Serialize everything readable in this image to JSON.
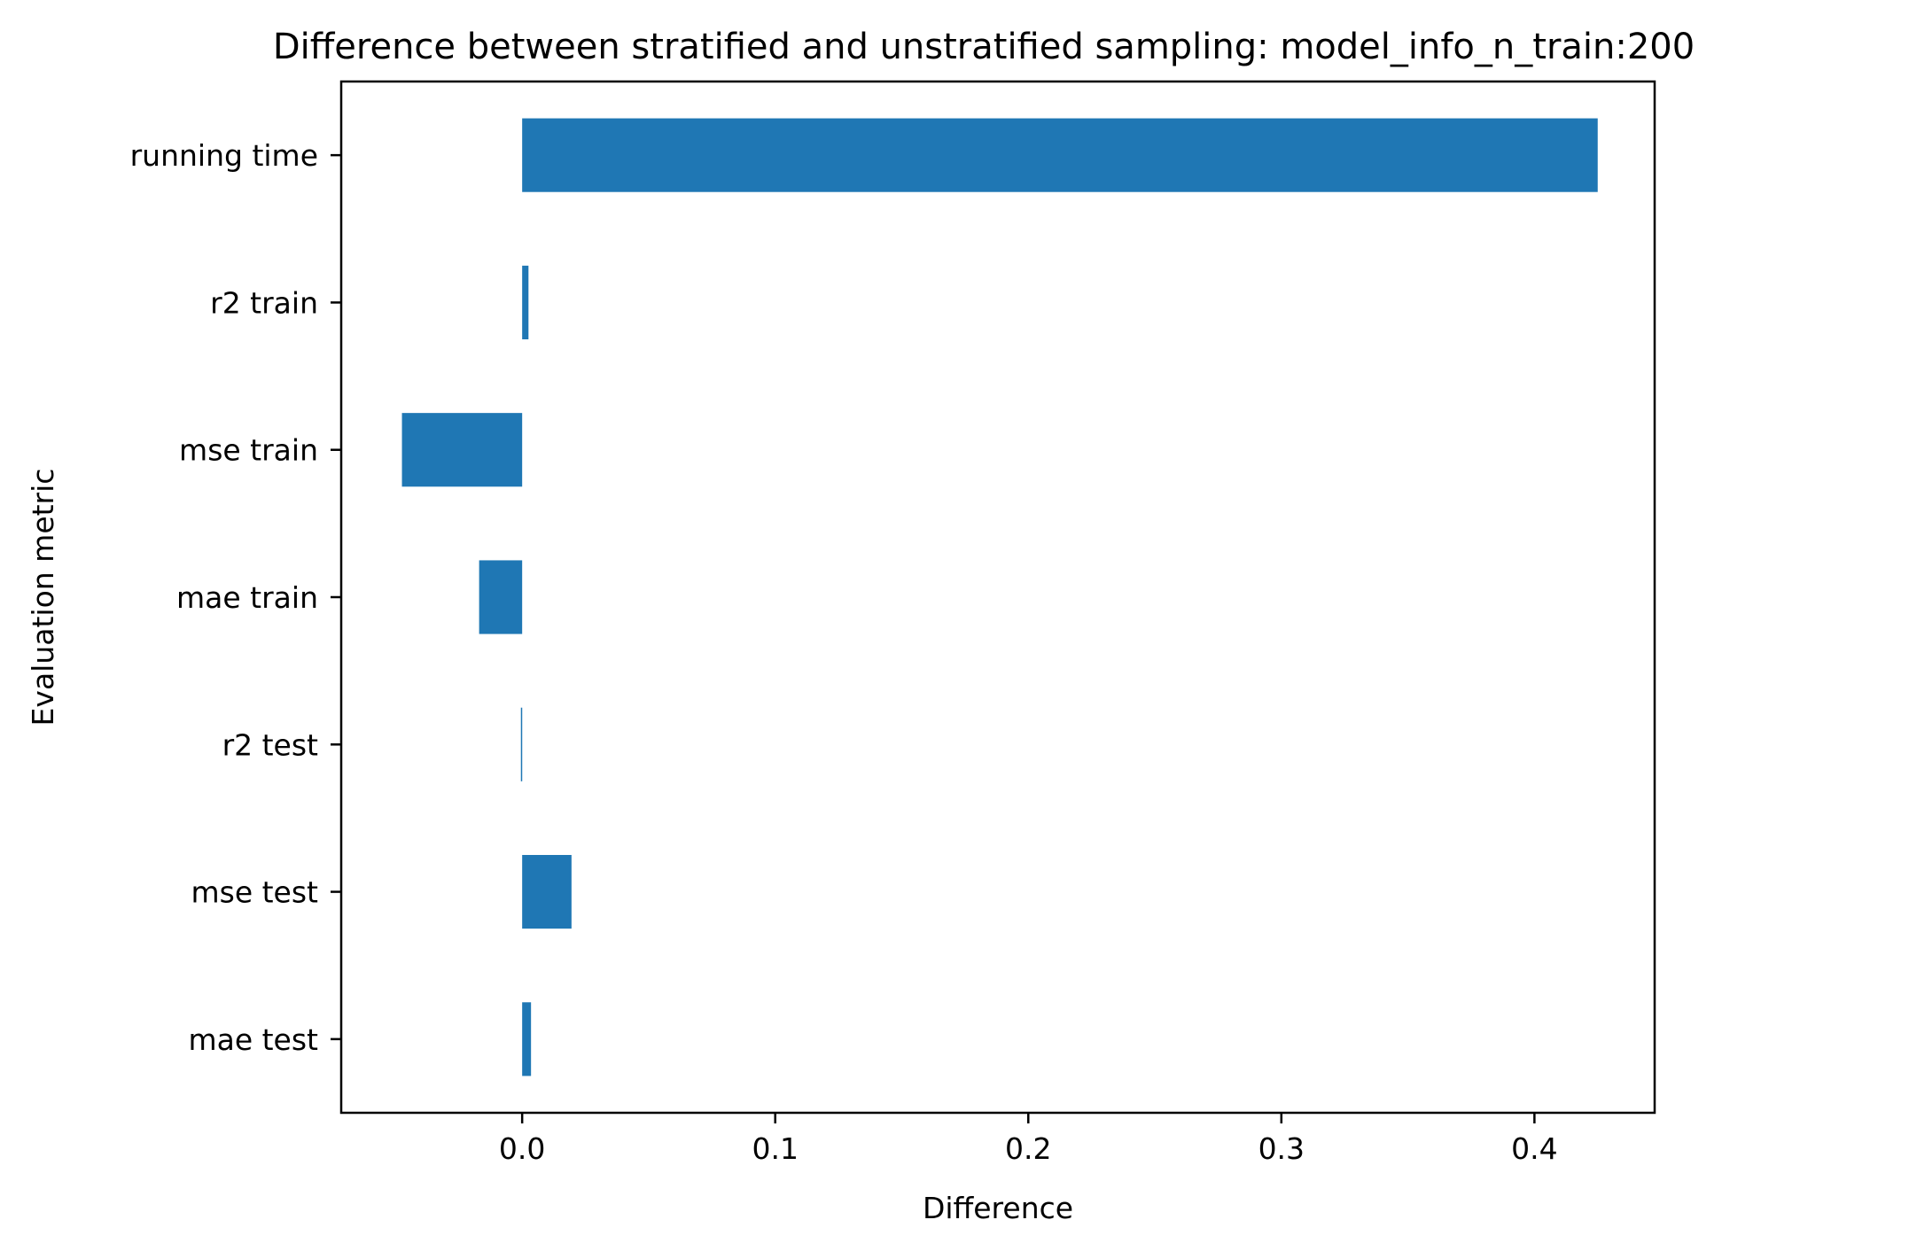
{
  "chart_data": {
    "type": "bar",
    "orientation": "horizontal",
    "title": "Difference between stratified and unstratified sampling: model_info_n_train:200",
    "xlabel": "Difference",
    "ylabel": "Evaluation metric",
    "categories": [
      "mae test",
      "mse test",
      "r2 test",
      "mae train",
      "mse train",
      "r2 train",
      "running time"
    ],
    "values": [
      0.0035,
      0.0195,
      -0.0005,
      -0.017,
      -0.0475,
      0.0025,
      0.425
    ],
    "xlim": [
      -0.0715,
      0.4475
    ],
    "x_ticks": [
      0.0,
      0.1,
      0.2,
      0.3,
      0.4
    ],
    "x_tick_labels": [
      "0.0",
      "0.1",
      "0.2",
      "0.3",
      "0.4"
    ],
    "grid": false,
    "legend": "none",
    "bar_color": "#1f77b4"
  }
}
